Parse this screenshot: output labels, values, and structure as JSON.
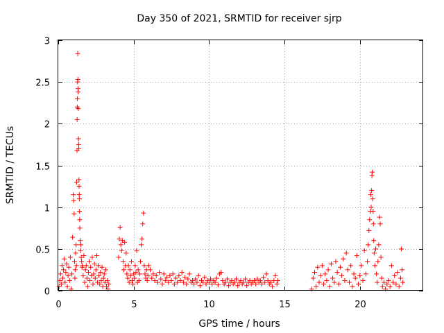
{
  "chart_data": {
    "type": "scatter",
    "title": "Day 350 of 2021, SRMTID for receiver sjrp",
    "xlabel": "GPS time / hours",
    "ylabel": "SRMTID / TECUs",
    "xlim": [
      0,
      24.2
    ],
    "ylim": [
      0,
      3
    ],
    "xticks": [
      0,
      5,
      10,
      15,
      20
    ],
    "yticks": [
      0,
      0.5,
      1,
      1.5,
      2,
      2.5,
      3
    ],
    "xtick_labels": [
      "0",
      "5",
      "10",
      "15",
      "20"
    ],
    "ytick_labels": [
      "0",
      "0.5",
      "1",
      "1.5",
      "2",
      "2.5",
      "3"
    ],
    "grid": true,
    "marker": "+",
    "color": "#ff0000",
    "series": [
      {
        "name": "SRMTID",
        "points": [
          [
            0.05,
            0.05
          ],
          [
            0.1,
            0.12
          ],
          [
            0.15,
            0.2
          ],
          [
            0.2,
            0.08
          ],
          [
            0.25,
            0.3
          ],
          [
            0.3,
            0.15
          ],
          [
            0.35,
            0.25
          ],
          [
            0.4,
            0.38
          ],
          [
            0.45,
            0.1
          ],
          [
            0.5,
            0.22
          ],
          [
            0.55,
            0.32
          ],
          [
            0.6,
            0.05
          ],
          [
            0.65,
            0.18
          ],
          [
            0.7,
            0.28
          ],
          [
            0.75,
            0.12
          ],
          [
            0.8,
            0.4
          ],
          [
            0.85,
            0.02
          ],
          [
            0.9,
            0.2
          ],
          [
            0.95,
            0.64
          ],
          [
            1.0,
            1.15
          ],
          [
            1.02,
            1.08
          ],
          [
            1.05,
            0.92
          ],
          [
            1.08,
            0.35
          ],
          [
            1.1,
            0.15
          ],
          [
            1.12,
            0.25
          ],
          [
            1.15,
            0.45
          ],
          [
            1.18,
            0.55
          ],
          [
            1.2,
            0.3
          ],
          [
            1.22,
            1.3
          ],
          [
            1.24,
            1.68
          ],
          [
            1.25,
            2.05
          ],
          [
            1.26,
            2.2
          ],
          [
            1.27,
            2.3
          ],
          [
            1.28,
            2.5
          ],
          [
            1.29,
            2.84
          ],
          [
            1.3,
            2.53
          ],
          [
            1.31,
            2.42
          ],
          [
            1.32,
            2.38
          ],
          [
            1.33,
            2.18
          ],
          [
            1.34,
            1.82
          ],
          [
            1.35,
            1.75
          ],
          [
            1.36,
            1.7
          ],
          [
            1.37,
            1.33
          ],
          [
            1.38,
            1.25
          ],
          [
            1.39,
            1.15
          ],
          [
            1.4,
            1.1
          ],
          [
            1.41,
            0.95
          ],
          [
            1.42,
            0.85
          ],
          [
            1.43,
            0.75
          ],
          [
            1.45,
            0.6
          ],
          [
            1.47,
            0.48
          ],
          [
            1.5,
            0.55
          ],
          [
            1.52,
            0.4
          ],
          [
            1.55,
            0.35
          ],
          [
            1.58,
            0.28
          ],
          [
            1.6,
            0.3
          ],
          [
            1.65,
            0.18
          ],
          [
            1.7,
            0.42
          ],
          [
            1.75,
            0.1
          ],
          [
            1.8,
            0.25
          ],
          [
            1.85,
            0.3
          ],
          [
            1.9,
            0.15
          ],
          [
            1.95,
            0.05
          ],
          [
            2.0,
            0.22
          ],
          [
            2.05,
            0.35
          ],
          [
            2.1,
            0.12
          ],
          [
            2.15,
            0.28
          ],
          [
            2.2,
            0.18
          ],
          [
            2.25,
            0.4
          ],
          [
            2.3,
            0.08
          ],
          [
            2.35,
            0.2
          ],
          [
            2.4,
            0.32
          ],
          [
            2.45,
            0.15
          ],
          [
            2.5,
            0.25
          ],
          [
            2.55,
            0.42
          ],
          [
            2.6,
            0.1
          ],
          [
            2.65,
            0.3
          ],
          [
            2.7,
            0.18
          ],
          [
            2.75,
            0.08
          ],
          [
            2.8,
            0.22
          ],
          [
            2.85,
            0.12
          ],
          [
            2.9,
            0.28
          ],
          [
            2.95,
            0.05
          ],
          [
            3.0,
            0.15
          ],
          [
            3.05,
            0.2
          ],
          [
            3.1,
            0.1
          ],
          [
            3.15,
            0.25
          ],
          [
            3.2,
            0.05
          ],
          [
            3.25,
            0.12
          ],
          [
            3.3,
            0.02
          ],
          [
            3.35,
            0.08
          ],
          [
            4.0,
            0.4
          ],
          [
            4.05,
            0.62
          ],
          [
            4.1,
            0.76
          ],
          [
            4.15,
            0.55
          ],
          [
            4.2,
            0.48
          ],
          [
            4.25,
            0.6
          ],
          [
            4.3,
            0.35
          ],
          [
            4.35,
            0.25
          ],
          [
            4.4,
            0.58
          ],
          [
            4.45,
            0.3
          ],
          [
            4.5,
            0.45
          ],
          [
            4.55,
            0.2
          ],
          [
            4.6,
            0.15
          ],
          [
            4.65,
            0.3
          ],
          [
            4.7,
            0.1
          ],
          [
            4.75,
            0.25
          ],
          [
            4.8,
            0.18
          ],
          [
            4.85,
            0.35
          ],
          [
            4.9,
            0.12
          ],
          [
            4.95,
            0.08
          ],
          [
            5.0,
            0.2
          ],
          [
            5.05,
            0.15
          ],
          [
            5.1,
            0.3
          ],
          [
            5.15,
            0.22
          ],
          [
            5.2,
            0.48
          ],
          [
            5.25,
            0.1
          ],
          [
            5.3,
            0.25
          ],
          [
            5.35,
            0.12
          ],
          [
            5.4,
            0.2
          ],
          [
            5.45,
            0.35
          ],
          [
            5.5,
            0.55
          ],
          [
            5.55,
            0.62
          ],
          [
            5.6,
            0.8
          ],
          [
            5.65,
            0.93
          ],
          [
            5.7,
            0.3
          ],
          [
            5.75,
            0.2
          ],
          [
            5.8,
            0.15
          ],
          [
            5.85,
            0.25
          ],
          [
            5.9,
            0.12
          ],
          [
            5.95,
            0.18
          ],
          [
            6.0,
            0.3
          ],
          [
            6.1,
            0.25
          ],
          [
            6.2,
            0.15
          ],
          [
            6.3,
            0.2
          ],
          [
            6.4,
            0.12
          ],
          [
            6.5,
            0.18
          ],
          [
            6.6,
            0.1
          ],
          [
            6.7,
            0.22
          ],
          [
            6.8,
            0.14
          ],
          [
            6.9,
            0.08
          ],
          [
            7.0,
            0.2
          ],
          [
            7.1,
            0.12
          ],
          [
            7.2,
            0.16
          ],
          [
            7.3,
            0.1
          ],
          [
            7.4,
            0.18
          ],
          [
            7.5,
            0.12
          ],
          [
            7.6,
            0.2
          ],
          [
            7.7,
            0.08
          ],
          [
            7.8,
            0.15
          ],
          [
            7.9,
            0.1
          ],
          [
            8.0,
            0.18
          ],
          [
            8.1,
            0.12
          ],
          [
            8.2,
            0.22
          ],
          [
            8.3,
            0.1
          ],
          [
            8.4,
            0.16
          ],
          [
            8.5,
            0.08
          ],
          [
            8.6,
            0.14
          ],
          [
            8.7,
            0.2
          ],
          [
            8.8,
            0.1
          ],
          [
            8.9,
            0.12
          ],
          [
            9.0,
            0.08
          ],
          [
            9.1,
            0.14
          ],
          [
            9.2,
            0.1
          ],
          [
            9.3,
            0.18
          ],
          [
            9.4,
            0.06
          ],
          [
            9.5,
            0.12
          ],
          [
            9.6,
            0.1
          ],
          [
            9.7,
            0.16
          ],
          [
            9.8,
            0.08
          ],
          [
            9.9,
            0.12
          ],
          [
            10.0,
            0.1
          ],
          [
            10.1,
            0.14
          ],
          [
            10.2,
            0.08
          ],
          [
            10.3,
            0.12
          ],
          [
            10.4,
            0.1
          ],
          [
            10.5,
            0.15
          ],
          [
            10.6,
            0.07
          ],
          [
            10.7,
            0.2
          ],
          [
            10.8,
            0.22
          ],
          [
            10.9,
            0.12
          ],
          [
            11.0,
            0.08
          ],
          [
            11.1,
            0.1
          ],
          [
            11.2,
            0.14
          ],
          [
            11.3,
            0.06
          ],
          [
            11.4,
            0.1
          ],
          [
            11.5,
            0.12
          ],
          [
            11.6,
            0.08
          ],
          [
            11.7,
            0.1
          ],
          [
            11.8,
            0.14
          ],
          [
            11.9,
            0.06
          ],
          [
            12.0,
            0.1
          ],
          [
            12.1,
            0.12
          ],
          [
            12.2,
            0.08
          ],
          [
            12.3,
            0.1
          ],
          [
            12.4,
            0.14
          ],
          [
            12.5,
            0.06
          ],
          [
            12.6,
            0.1
          ],
          [
            12.7,
            0.12
          ],
          [
            12.8,
            0.08
          ],
          [
            12.9,
            0.1
          ],
          [
            13.0,
            0.12
          ],
          [
            13.1,
            0.08
          ],
          [
            13.2,
            0.14
          ],
          [
            13.3,
            0.1
          ],
          [
            13.4,
            0.12
          ],
          [
            13.5,
            0.08
          ],
          [
            13.6,
            0.16
          ],
          [
            13.7,
            0.1
          ],
          [
            13.8,
            0.2
          ],
          [
            13.9,
            0.12
          ],
          [
            14.0,
            0.08
          ],
          [
            14.1,
            0.1
          ],
          [
            14.2,
            0.05
          ],
          [
            14.3,
            0.12
          ],
          [
            14.4,
            0.18
          ],
          [
            14.5,
            0.08
          ],
          [
            14.55,
            0.12
          ],
          [
            16.8,
            0.02
          ],
          [
            16.9,
            0.15
          ],
          [
            17.0,
            0.22
          ],
          [
            17.1,
            0.05
          ],
          [
            17.2,
            0.28
          ],
          [
            17.3,
            0.1
          ],
          [
            17.4,
            0.18
          ],
          [
            17.5,
            0.3
          ],
          [
            17.6,
            0.08
          ],
          [
            17.7,
            0.2
          ],
          [
            17.8,
            0.12
          ],
          [
            17.9,
            0.25
          ],
          [
            18.0,
            0.05
          ],
          [
            18.1,
            0.32
          ],
          [
            18.2,
            0.15
          ],
          [
            18.3,
            0.1
          ],
          [
            18.4,
            0.35
          ],
          [
            18.5,
            0.22
          ],
          [
            18.6,
            0.08
          ],
          [
            18.7,
            0.28
          ],
          [
            18.8,
            0.18
          ],
          [
            18.9,
            0.38
          ],
          [
            19.0,
            0.12
          ],
          [
            19.1,
            0.45
          ],
          [
            19.2,
            0.25
          ],
          [
            19.3,
            0.1
          ],
          [
            19.4,
            0.3
          ],
          [
            19.5,
            0.05
          ],
          [
            19.6,
            0.2
          ],
          [
            19.7,
            0.15
          ],
          [
            19.8,
            0.42
          ],
          [
            19.9,
            0.08
          ],
          [
            20.0,
            0.18
          ],
          [
            20.1,
            0.3
          ],
          [
            20.2,
            0.12
          ],
          [
            20.3,
            0.48
          ],
          [
            20.4,
            0.2
          ],
          [
            20.5,
            0.35
          ],
          [
            20.55,
            0.55
          ],
          [
            20.6,
            0.72
          ],
          [
            20.65,
            0.85
          ],
          [
            20.7,
            0.95
          ],
          [
            20.72,
            1.15
          ],
          [
            20.75,
            1.0
          ],
          [
            20.78,
            1.2
          ],
          [
            20.8,
            1.38
          ],
          [
            20.82,
            1.42
          ],
          [
            20.85,
            1.1
          ],
          [
            20.88,
            0.95
          ],
          [
            20.9,
            0.8
          ],
          [
            20.92,
            0.6
          ],
          [
            20.95,
            0.45
          ],
          [
            21.0,
            0.3
          ],
          [
            21.05,
            0.5
          ],
          [
            21.1,
            0.2
          ],
          [
            21.15,
            0.1
          ],
          [
            21.2,
            0.35
          ],
          [
            21.25,
            0.55
          ],
          [
            21.3,
            0.88
          ],
          [
            21.35,
            0.8
          ],
          [
            21.4,
            0.4
          ],
          [
            21.45,
            0.15
          ],
          [
            21.5,
            0.05
          ],
          [
            21.6,
            0.1
          ],
          [
            21.7,
            0.02
          ],
          [
            21.8,
            0.08
          ],
          [
            21.9,
            0.12
          ],
          [
            22.0,
            0.05
          ],
          [
            22.1,
            0.3
          ],
          [
            22.2,
            0.1
          ],
          [
            22.3,
            0.18
          ],
          [
            22.4,
            0.08
          ],
          [
            22.5,
            0.22
          ],
          [
            22.6,
            0.05
          ],
          [
            22.7,
            0.15
          ],
          [
            22.75,
            0.5
          ],
          [
            22.8,
            0.25
          ],
          [
            22.85,
            0.1
          ]
        ]
      }
    ]
  }
}
